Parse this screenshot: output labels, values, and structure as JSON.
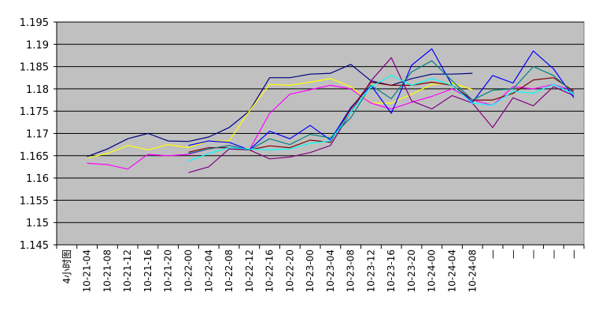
{
  "chart_data": {
    "type": "line",
    "title": "",
    "xlabel": "",
    "ylabel": "",
    "ylim": [
      1.145,
      1.195
    ],
    "yticks": [
      "1.145",
      "1.15",
      "1.155",
      "1.16",
      "1.165",
      "1.17",
      "1.175",
      "1.18",
      "1.185",
      "1.19",
      "1.195"
    ],
    "grid": true,
    "legend": "none",
    "plot_background": "#c0c0c0",
    "categories": [
      "4小时图",
      "10-21-04",
      "10-21-08",
      "10-21-12",
      "10-21-16",
      "10-21-20",
      "10-22-00",
      "10-22-04",
      "10-22-08",
      "10-22-12",
      "10-22-16",
      "10-22-20",
      "10-23-00",
      "10-23-04",
      "10-23-08",
      "10-23-12",
      "10-23-16",
      "10-23-20",
      "10-24-00",
      "10-24-04",
      "10-24-08",
      "—",
      "—",
      "—",
      "—",
      "—"
    ],
    "series": [
      {
        "color": "#000080",
        "values": [
          null,
          1.1648,
          1.1665,
          1.1688,
          1.17,
          1.1683,
          1.1682,
          1.1692,
          1.1713,
          1.175,
          1.1825,
          1.1825,
          1.1833,
          1.1835,
          1.1855,
          1.1818,
          1.1808,
          1.1823,
          1.1833,
          1.1833,
          1.1835,
          null,
          null,
          null,
          null,
          null
        ]
      },
      {
        "color": "#ffff00",
        "values": [
          null,
          1.1645,
          1.1655,
          1.1673,
          1.1663,
          1.1675,
          1.1668,
          1.1683,
          1.1683,
          1.175,
          1.181,
          1.1808,
          1.1815,
          1.1823,
          1.1805,
          1.1768,
          1.1768,
          1.1788,
          1.181,
          1.1813,
          1.1798,
          null,
          null,
          null,
          null,
          null
        ]
      },
      {
        "color": "#ff00ff",
        "values": [
          null,
          1.1633,
          1.163,
          1.162,
          1.1653,
          1.165,
          1.1653,
          1.1665,
          1.1673,
          1.1663,
          1.1745,
          1.1788,
          1.1798,
          1.1808,
          1.18,
          1.1768,
          1.1755,
          1.177,
          1.1783,
          1.18,
          1.1775,
          1.1763,
          1.1805,
          1.18,
          1.181,
          1.1795
        ]
      },
      {
        "color": "#800080",
        "values": [
          null,
          null,
          null,
          null,
          null,
          null,
          1.1612,
          1.1625,
          1.1665,
          1.1663,
          1.1643,
          1.1647,
          1.1657,
          1.1673,
          1.1748,
          1.1818,
          1.187,
          1.1773,
          1.1755,
          1.1785,
          1.1768,
          1.1713,
          1.178,
          1.1762,
          1.1805,
          1.1785
        ]
      },
      {
        "color": "#0000ff",
        "values": [
          null,
          null,
          null,
          null,
          null,
          null,
          1.1673,
          1.1683,
          1.168,
          1.1663,
          1.1705,
          1.1688,
          1.1718,
          1.1685,
          1.1758,
          1.1808,
          1.1745,
          1.1853,
          1.189,
          1.1808,
          1.177,
          1.183,
          1.1813,
          1.1885,
          1.1845,
          1.178
        ]
      },
      {
        "color": "#800000",
        "values": [
          null,
          null,
          null,
          null,
          null,
          null,
          1.1658,
          1.1668,
          1.1668,
          1.1663,
          1.1672,
          1.1668,
          1.1685,
          1.168,
          1.1755,
          1.1815,
          1.1808,
          1.1808,
          1.1815,
          1.1808,
          1.1775,
          1.1775,
          1.179,
          1.182,
          1.1825,
          1.1795
        ]
      },
      {
        "color": "#008080",
        "values": [
          null,
          null,
          null,
          null,
          null,
          null,
          1.1655,
          1.1665,
          1.1673,
          1.1663,
          1.1688,
          1.1675,
          1.1698,
          1.169,
          1.1735,
          1.1808,
          1.1778,
          1.1838,
          1.1863,
          1.1818,
          1.1775,
          1.1797,
          1.18,
          1.185,
          1.183,
          1.179
        ]
      },
      {
        "color": "#00ffff",
        "values": [
          null,
          null,
          null,
          null,
          null,
          null,
          1.1638,
          1.1655,
          1.1668,
          1.1665,
          1.1663,
          1.1665,
          1.1678,
          1.1683,
          1.1748,
          1.1805,
          1.183,
          1.1808,
          1.1823,
          1.1808,
          1.1768,
          1.1763,
          1.1795,
          1.179,
          1.181,
          1.1788
        ]
      }
    ]
  }
}
